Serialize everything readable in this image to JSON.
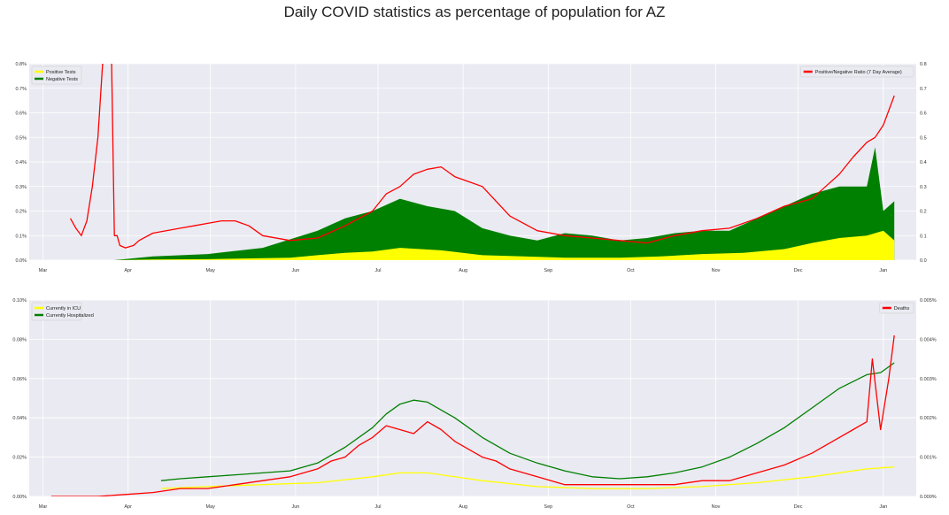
{
  "title": "Daily COVID statistics as percentage of population for AZ",
  "colors": {
    "positive": "#ffff00",
    "negative": "#008000",
    "ratio": "#ff0000",
    "icu": "#ffff00",
    "hospitalized": "#008000",
    "deaths": "#ff0000",
    "plot_bg": "#eaeaf2",
    "grid": "#ffffff"
  },
  "chart_data": [
    {
      "type": "area",
      "subtype": "stacked-area-with-line",
      "x_axis": {
        "ticks": [
          "Mar",
          "Apr",
          "May",
          "Jun",
          "Jul",
          "Aug",
          "Sep",
          "Oct",
          "Nov",
          "Dec",
          "Jan"
        ],
        "tick_day_index": [
          0,
          31,
          61,
          92,
          122,
          153,
          184,
          214,
          245,
          275,
          306
        ]
      },
      "y_left": {
        "range": [
          0,
          0.8
        ],
        "ticks": [
          "0.0%",
          "0.1%",
          "0.2%",
          "0.3%",
          "0.4%",
          "0.5%",
          "0.6%",
          "0.7%",
          "0.8%"
        ]
      },
      "y_right": {
        "range": [
          0,
          0.8
        ],
        "ticks": [
          "0.0",
          "0.1",
          "0.2",
          "0.3",
          "0.4",
          "0.5",
          "0.6",
          "0.7",
          "0.8"
        ]
      },
      "legend_left": {
        "placement": "top-left",
        "entries": [
          "Positive Tests",
          "Negative Tests"
        ]
      },
      "legend_right": {
        "placement": "top-right",
        "entries": [
          "Positive/Negative Ratio (7 Day Average)"
        ]
      },
      "series": [
        {
          "name": "Positive Tests",
          "axis": "left",
          "style": "area",
          "x": [
            26,
            40,
            60,
            90,
            100,
            110,
            120,
            130,
            145,
            160,
            175,
            190,
            210,
            225,
            240,
            255,
            270,
            280,
            290,
            300,
            306,
            310
          ],
          "y": [
            0.0,
            0.003,
            0.004,
            0.01,
            0.02,
            0.03,
            0.035,
            0.05,
            0.04,
            0.02,
            0.015,
            0.01,
            0.01,
            0.015,
            0.025,
            0.03,
            0.045,
            0.07,
            0.09,
            0.1,
            0.12,
            0.08
          ]
        },
        {
          "name": "Negative Tests",
          "axis": "left",
          "style": "area",
          "x": [
            26,
            40,
            60,
            80,
            100,
            110,
            120,
            130,
            140,
            150,
            160,
            170,
            180,
            190,
            200,
            210,
            220,
            230,
            240,
            250,
            260,
            270,
            280,
            290,
            300,
            303,
            306,
            310
          ],
          "y": [
            0.0,
            0.015,
            0.025,
            0.05,
            0.12,
            0.17,
            0.2,
            0.25,
            0.22,
            0.2,
            0.13,
            0.1,
            0.08,
            0.11,
            0.1,
            0.08,
            0.09,
            0.11,
            0.12,
            0.12,
            0.17,
            0.22,
            0.27,
            0.3,
            0.3,
            0.46,
            0.2,
            0.24
          ]
        },
        {
          "name": "Positive/Negative Ratio (7 Day Average)",
          "axis": "right",
          "style": "line",
          "x": [
            10,
            12,
            14,
            16,
            18,
            20,
            22,
            24,
            25,
            26,
            27,
            28,
            30,
            33,
            35,
            40,
            50,
            55,
            60,
            65,
            70,
            75,
            80,
            90,
            100,
            110,
            120,
            125,
            130,
            135,
            140,
            145,
            150,
            155,
            160,
            170,
            180,
            190,
            200,
            210,
            220,
            230,
            240,
            250,
            260,
            270,
            280,
            285,
            290,
            295,
            300,
            303,
            306,
            310
          ],
          "y": [
            0.17,
            0.13,
            0.1,
            0.16,
            0.3,
            0.5,
            0.85,
            0.85,
            0.8,
            0.1,
            0.1,
            0.06,
            0.05,
            0.06,
            0.08,
            0.11,
            0.13,
            0.14,
            0.15,
            0.16,
            0.16,
            0.14,
            0.1,
            0.08,
            0.09,
            0.14,
            0.2,
            0.27,
            0.3,
            0.35,
            0.37,
            0.38,
            0.34,
            0.32,
            0.3,
            0.18,
            0.12,
            0.1,
            0.09,
            0.08,
            0.07,
            0.1,
            0.12,
            0.13,
            0.17,
            0.22,
            0.25,
            0.3,
            0.35,
            0.42,
            0.48,
            0.5,
            0.55,
            0.67
          ]
        }
      ]
    },
    {
      "type": "line",
      "subtype": "lines-with-area",
      "x_axis": {
        "ticks": [
          "Mar",
          "Apr",
          "May",
          "Jun",
          "Jul",
          "Aug",
          "Sep",
          "Oct",
          "Nov",
          "Dec",
          "Jan"
        ],
        "tick_day_index": [
          0,
          31,
          61,
          92,
          122,
          153,
          184,
          214,
          245,
          275,
          306
        ]
      },
      "y_left": {
        "range": [
          0,
          0.1
        ],
        "ticks": [
          "0.00%",
          "0.02%",
          "0.04%",
          "0.06%",
          "0.08%",
          "0.10%"
        ]
      },
      "y_right": {
        "range": [
          0,
          0.005
        ],
        "ticks": [
          "0.000%",
          "0.001%",
          "0.002%",
          "0.003%",
          "0.004%",
          "0.005%"
        ]
      },
      "legend_left": {
        "placement": "top-left",
        "entries": [
          "Currently in ICU",
          "Currently Hospitalized"
        ]
      },
      "legend_right": {
        "placement": "top-right",
        "entries": [
          "Deaths"
        ]
      },
      "series": [
        {
          "name": "Currently in ICU",
          "axis": "left",
          "style": "line",
          "x": [
            43,
            60,
            80,
            100,
            120,
            130,
            140,
            160,
            180,
            200,
            220,
            240,
            260,
            280,
            300,
            310
          ],
          "y": [
            0.004,
            0.005,
            0.006,
            0.007,
            0.01,
            0.012,
            0.012,
            0.008,
            0.005,
            0.004,
            0.004,
            0.005,
            0.007,
            0.01,
            0.014,
            0.015
          ]
        },
        {
          "name": "Currently Hospitalized",
          "axis": "left",
          "style": "line",
          "x": [
            43,
            50,
            60,
            70,
            80,
            90,
            100,
            110,
            120,
            125,
            130,
            135,
            140,
            150,
            160,
            170,
            180,
            190,
            200,
            210,
            220,
            230,
            240,
            250,
            260,
            270,
            280,
            290,
            300,
            305,
            310
          ],
          "y": [
            0.008,
            0.009,
            0.01,
            0.011,
            0.012,
            0.013,
            0.017,
            0.025,
            0.035,
            0.042,
            0.047,
            0.049,
            0.048,
            0.04,
            0.03,
            0.022,
            0.017,
            0.013,
            0.01,
            0.009,
            0.01,
            0.012,
            0.015,
            0.02,
            0.027,
            0.035,
            0.045,
            0.055,
            0.062,
            0.063,
            0.068
          ]
        },
        {
          "name": "Deaths",
          "axis": "right",
          "style": "line",
          "x": [
            3,
            20,
            30,
            40,
            50,
            60,
            70,
            80,
            90,
            100,
            105,
            110,
            115,
            120,
            125,
            130,
            135,
            140,
            145,
            150,
            155,
            160,
            165,
            170,
            180,
            190,
            200,
            210,
            220,
            230,
            240,
            250,
            260,
            270,
            280,
            290,
            295,
            300,
            302,
            305,
            308,
            310
          ],
          "y": [
            0.0,
            0.0,
            5e-05,
            0.0001,
            0.0002,
            0.0002,
            0.0003,
            0.0004,
            0.0005,
            0.0007,
            0.0009,
            0.001,
            0.0013,
            0.0015,
            0.0018,
            0.0017,
            0.0016,
            0.0019,
            0.0017,
            0.0014,
            0.0012,
            0.001,
            0.0009,
            0.0007,
            0.0005,
            0.0003,
            0.0003,
            0.0003,
            0.0003,
            0.0003,
            0.0004,
            0.0004,
            0.0006,
            0.0008,
            0.0011,
            0.0015,
            0.0017,
            0.0019,
            0.0035,
            0.0017,
            0.003,
            0.0041
          ]
        }
      ]
    }
  ]
}
